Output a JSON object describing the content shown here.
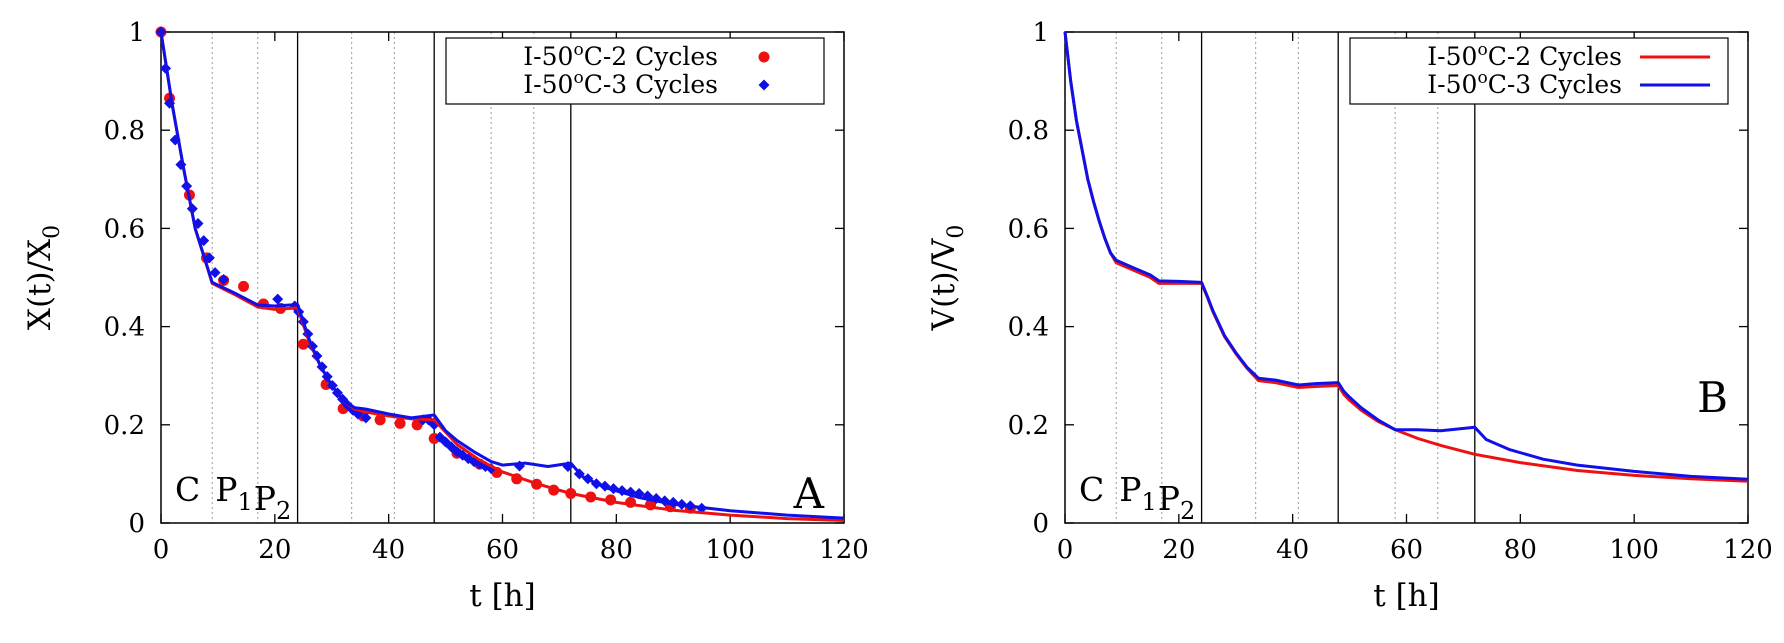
{
  "colors": {
    "red": "#ee1111",
    "blue": "#1010e8"
  },
  "chart_data": [
    {
      "type": "scatter",
      "panel_label": "A",
      "xlabel": "t [h]",
      "ylabel": {
        "base": "X(t)/X",
        "sub": "0"
      },
      "xlim": [
        0,
        120
      ],
      "ylim": [
        0,
        1
      ],
      "xticks": [
        "0",
        "20",
        "40",
        "60",
        "80",
        "100",
        "120"
      ],
      "yticks": [
        "0",
        "0.2",
        "0.4",
        "0.6",
        "0.8",
        "1"
      ],
      "region_labels": [
        {
          "main": "C",
          "sub": ""
        },
        {
          "main": "P",
          "sub": "1"
        },
        {
          "main": "P",
          "sub": "2"
        }
      ],
      "cycle_boundaries": [
        24,
        48,
        72
      ],
      "phase_boundaries": [
        9,
        17,
        33.5,
        41,
        58,
        65.5
      ],
      "legend": [
        {
          "pre": "I-50",
          "sup": "o",
          "post": "C-2 Cycles",
          "marker": "circle",
          "color": "red"
        },
        {
          "pre": "I-50",
          "sup": "o",
          "post": "C-3 Cycles",
          "marker": "diamond",
          "color": "blue"
        }
      ],
      "series": [
        {
          "name": "I-50oC-2 Cycles",
          "kind": "points",
          "marker": "circle",
          "color": "red",
          "x": [
            0,
            1.5,
            5,
            8,
            11,
            14.5,
            18,
            21,
            25,
            29,
            32,
            35.5,
            38.5,
            42,
            45,
            48,
            52,
            56,
            59,
            62.5,
            66,
            69,
            72,
            75.5,
            79,
            82.5,
            86,
            89.5,
            93
          ],
          "y": [
            1.0,
            0.865,
            0.668,
            0.54,
            0.494,
            0.482,
            0.446,
            0.437,
            0.364,
            0.282,
            0.233,
            0.218,
            0.21,
            0.203,
            0.2,
            0.172,
            0.142,
            0.12,
            0.103,
            0.09,
            0.079,
            0.067,
            0.06,
            0.053,
            0.047,
            0.042,
            0.037,
            0.033,
            0.03
          ]
        },
        {
          "name": "I-50oC-3 Cycles",
          "kind": "points",
          "marker": "diamond",
          "color": "blue",
          "x": [
            0,
            0.8,
            1.5,
            2.5,
            3.5,
            4.5,
            5.5,
            6.5,
            7.5,
            8.5,
            9.5,
            11,
            20.5,
            23.5,
            24.2,
            25,
            25.8,
            26.6,
            27.4,
            28.3,
            29.2,
            30.1,
            31,
            31.9,
            32.8,
            33.7,
            34.6,
            36,
            46,
            47,
            48,
            49,
            50,
            51,
            52,
            53,
            54,
            55,
            56,
            57,
            58,
            63,
            71.5,
            73.5,
            75,
            76.5,
            78,
            79.5,
            81,
            82.5,
            84,
            85.5,
            87,
            88.5,
            90,
            91.5,
            93,
            95
          ],
          "y": [
            1.0,
            0.926,
            0.855,
            0.78,
            0.73,
            0.686,
            0.64,
            0.61,
            0.575,
            0.54,
            0.51,
            0.496,
            0.456,
            0.442,
            0.43,
            0.41,
            0.385,
            0.36,
            0.34,
            0.318,
            0.298,
            0.28,
            0.265,
            0.252,
            0.24,
            0.23,
            0.222,
            0.214,
            0.21,
            0.21,
            0.2,
            0.175,
            0.165,
            0.155,
            0.145,
            0.138,
            0.131,
            0.125,
            0.12,
            0.115,
            0.111,
            0.116,
            0.115,
            0.1,
            0.09,
            0.08,
            0.075,
            0.07,
            0.066,
            0.063,
            0.06,
            0.055,
            0.05,
            0.045,
            0.042,
            0.038,
            0.035,
            0.03
          ]
        },
        {
          "name": "I-50oC-2 Cycles model",
          "kind": "line",
          "color": "red",
          "x": [
            0,
            2,
            4,
            6,
            9,
            13,
            17,
            20,
            24,
            26,
            28,
            30,
            32,
            34,
            36,
            40,
            44,
            48,
            52,
            56,
            60,
            66,
            72,
            80,
            90,
            100,
            110,
            120
          ],
          "y": [
            1.0,
            0.85,
            0.72,
            0.6,
            0.488,
            0.465,
            0.44,
            0.435,
            0.438,
            0.37,
            0.32,
            0.28,
            0.25,
            0.232,
            0.226,
            0.218,
            0.212,
            0.21,
            0.16,
            0.128,
            0.104,
            0.08,
            0.06,
            0.042,
            0.026,
            0.016,
            0.009,
            0.005
          ]
        },
        {
          "name": "I-50oC-3 Cycles model",
          "kind": "line",
          "color": "blue",
          "x": [
            0,
            2,
            4,
            6,
            9,
            13,
            17,
            20,
            24,
            26,
            28,
            30,
            32,
            34,
            36,
            40,
            44,
            48,
            50,
            52,
            55,
            58,
            60,
            64,
            68,
            72,
            74,
            78,
            84,
            90,
            100,
            110,
            120
          ],
          "y": [
            1.0,
            0.85,
            0.72,
            0.6,
            0.49,
            0.468,
            0.444,
            0.442,
            0.445,
            0.375,
            0.32,
            0.28,
            0.25,
            0.235,
            0.232,
            0.222,
            0.214,
            0.22,
            0.188,
            0.168,
            0.145,
            0.125,
            0.118,
            0.122,
            0.115,
            0.122,
            0.095,
            0.072,
            0.052,
            0.038,
            0.025,
            0.016,
            0.01
          ]
        }
      ]
    },
    {
      "type": "line",
      "panel_label": "B",
      "xlabel": "t [h]",
      "ylabel": {
        "base": "V(t)/V",
        "sub": "0"
      },
      "xlim": [
        0,
        120
      ],
      "ylim": [
        0,
        1
      ],
      "xticks": [
        "0",
        "20",
        "40",
        "60",
        "80",
        "100",
        "120"
      ],
      "yticks": [
        "0",
        "0.2",
        "0.4",
        "0.6",
        "0.8",
        "1"
      ],
      "region_labels": [
        {
          "main": "C",
          "sub": ""
        },
        {
          "main": "P",
          "sub": "1"
        },
        {
          "main": "P",
          "sub": "2"
        }
      ],
      "cycle_boundaries": [
        24,
        48,
        72
      ],
      "phase_boundaries": [
        9,
        17,
        33.5,
        41,
        58,
        65.5
      ],
      "legend": [
        {
          "pre": "I-50",
          "sup": "o",
          "post": "C-2 Cycles",
          "marker": "line",
          "color": "red"
        },
        {
          "pre": "I-50",
          "sup": "o",
          "post": "C-3 Cycles",
          "marker": "line",
          "color": "blue"
        }
      ],
      "series": [
        {
          "name": "I-50oC-2 Cycles",
          "kind": "line",
          "color": "red",
          "x": [
            0,
            1,
            2,
            3,
            4,
            5,
            6,
            7,
            8,
            9,
            12,
            15,
            16.5,
            20,
            24,
            25,
            26,
            28,
            30,
            32,
            34,
            37,
            41,
            44,
            48,
            49,
            50,
            52,
            55,
            58,
            62,
            66,
            72,
            80,
            90,
            100,
            110,
            120
          ],
          "y": [
            1.0,
            0.9,
            0.82,
            0.76,
            0.7,
            0.655,
            0.615,
            0.58,
            0.55,
            0.53,
            0.515,
            0.5,
            0.488,
            0.488,
            0.488,
            0.46,
            0.43,
            0.38,
            0.345,
            0.315,
            0.29,
            0.286,
            0.276,
            0.278,
            0.28,
            0.262,
            0.25,
            0.23,
            0.207,
            0.19,
            0.172,
            0.158,
            0.14,
            0.123,
            0.107,
            0.097,
            0.09,
            0.085
          ]
        },
        {
          "name": "I-50oC-3 Cycles",
          "kind": "line",
          "color": "blue",
          "x": [
            0,
            1,
            2,
            3,
            4,
            5,
            6,
            7,
            8,
            9,
            12,
            15,
            16.5,
            20,
            24,
            25,
            26,
            28,
            30,
            32,
            34,
            37,
            41,
            44,
            48,
            49,
            50,
            52,
            55,
            58,
            62,
            66,
            72,
            74,
            78,
            84,
            90,
            100,
            110,
            120
          ],
          "y": [
            1.0,
            0.9,
            0.82,
            0.76,
            0.7,
            0.655,
            0.615,
            0.58,
            0.55,
            0.535,
            0.52,
            0.505,
            0.493,
            0.492,
            0.49,
            0.462,
            0.432,
            0.382,
            0.347,
            0.317,
            0.295,
            0.291,
            0.281,
            0.284,
            0.286,
            0.268,
            0.256,
            0.235,
            0.21,
            0.19,
            0.19,
            0.188,
            0.195,
            0.17,
            0.15,
            0.13,
            0.118,
            0.105,
            0.095,
            0.089
          ]
        }
      ]
    }
  ]
}
